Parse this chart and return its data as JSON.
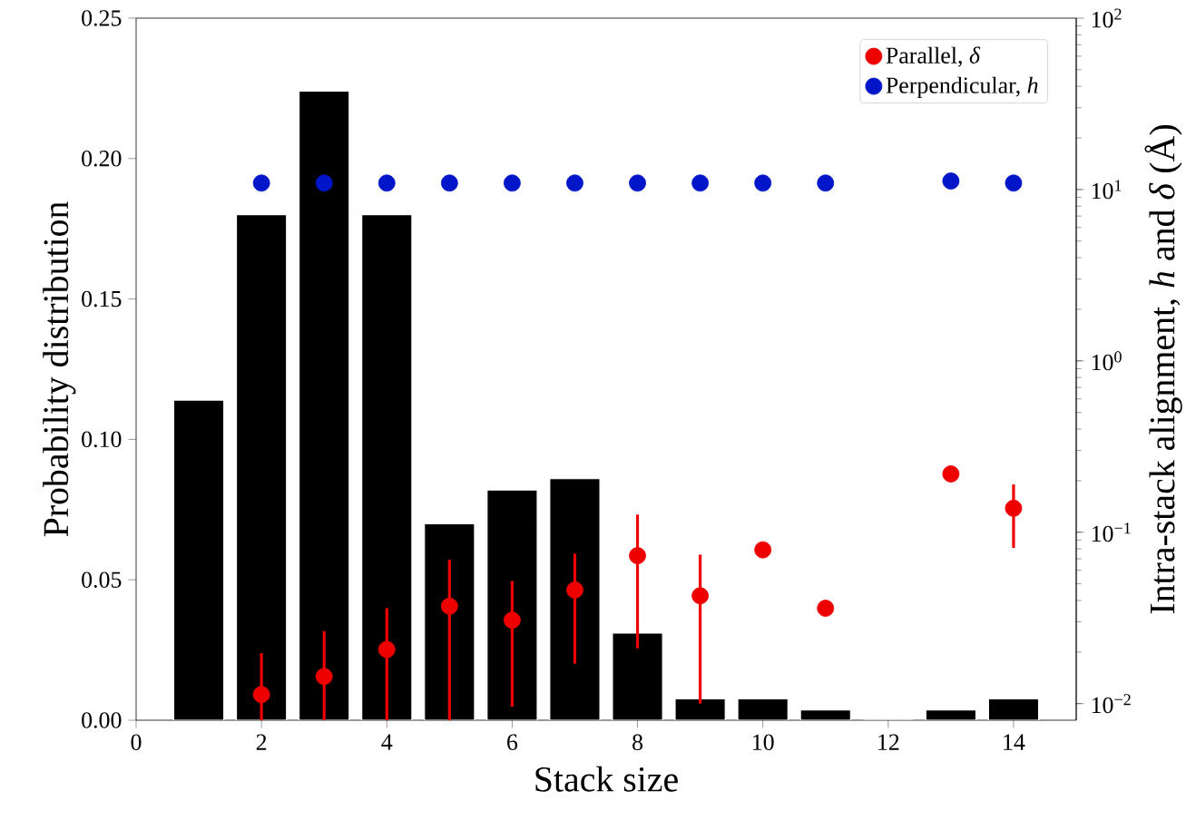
{
  "chart_data": {
    "type": "bar",
    "x": [
      1,
      2,
      3,
      4,
      5,
      6,
      7,
      8,
      9,
      10,
      11,
      12,
      13,
      14
    ],
    "xlabel": "Stack size",
    "ylabel": "Probability distribution",
    "y2label": "Intra-stack alignment, *h* and *δ* (Å)",
    "xlim": [
      0,
      15
    ],
    "xticks": [
      0,
      2,
      4,
      6,
      8,
      10,
      12,
      14
    ],
    "ylim": [
      0,
      0.25
    ],
    "yticks": [
      {
        "value": 0,
        "label": "0.00"
      },
      {
        "value": 0.05,
        "label": "0.05"
      },
      {
        "value": 0.1,
        "label": "0.10"
      },
      {
        "value": 0.15,
        "label": "0.15"
      },
      {
        "value": 0.2,
        "label": "0.20"
      },
      {
        "value": 0.25,
        "label": "0.25"
      }
    ],
    "y2lim": [
      0.008,
      100
    ],
    "y2ticks": [
      {
        "value": 0.01,
        "label": "10$^{−2}$"
      },
      {
        "value": 0.1,
        "label": "10$^{−1}$"
      },
      {
        "value": 1,
        "label": "10$^{0}$"
      },
      {
        "value": 10,
        "label": "10$^{1}$"
      },
      {
        "value": 100,
        "label": "10$^{2}$"
      }
    ],
    "log": "y2",
    "legend": "top right",
    "marker": "circle",
    "series": [
      {
        "color": "#000000",
        "values": [
          0.114,
          0.18,
          0.224,
          0.18,
          0.07,
          0.082,
          0.086,
          0.031,
          0.0076,
          0.0076,
          0.0037,
          0,
          0.0037,
          0.0076
        ]
      },
      {
        "type": "scatter",
        "name": "Parallel, *δ*",
        "color": "#ee0000",
        "axis": "y2",
        "x": [
          2,
          3,
          4,
          5,
          6,
          7,
          8,
          9,
          10,
          11,
          13,
          14
        ],
        "values": [
          0.0113,
          0.0144,
          0.0207,
          0.037,
          0.0307,
          0.046,
          0.073,
          0.0426,
          0.079,
          0.036,
          0.219,
          0.138
        ],
        "errors": [
          [
            0.008,
            0.0197
          ],
          [
            0.008,
            0.0265
          ],
          [
            0.008,
            0.0361
          ],
          [
            0.008,
            0.069
          ],
          [
            0.0096,
            0.052
          ],
          [
            0.0171,
            0.075
          ],
          [
            0.021,
            0.127
          ],
          [
            0.01,
            0.074
          ],
          null,
          null,
          null,
          [
            0.081,
            0.19
          ]
        ]
      },
      {
        "type": "scatter",
        "name": "Perpendicular, *h*",
        "color": "#0016c8",
        "axis": "y2",
        "x": [
          2,
          3,
          4,
          5,
          6,
          7,
          8,
          9,
          10,
          11,
          13,
          14
        ],
        "values": [
          10.9,
          10.9,
          10.9,
          10.9,
          10.9,
          10.9,
          10.9,
          10.9,
          10.9,
          10.9,
          11.2,
          10.9
        ]
      }
    ]
  }
}
